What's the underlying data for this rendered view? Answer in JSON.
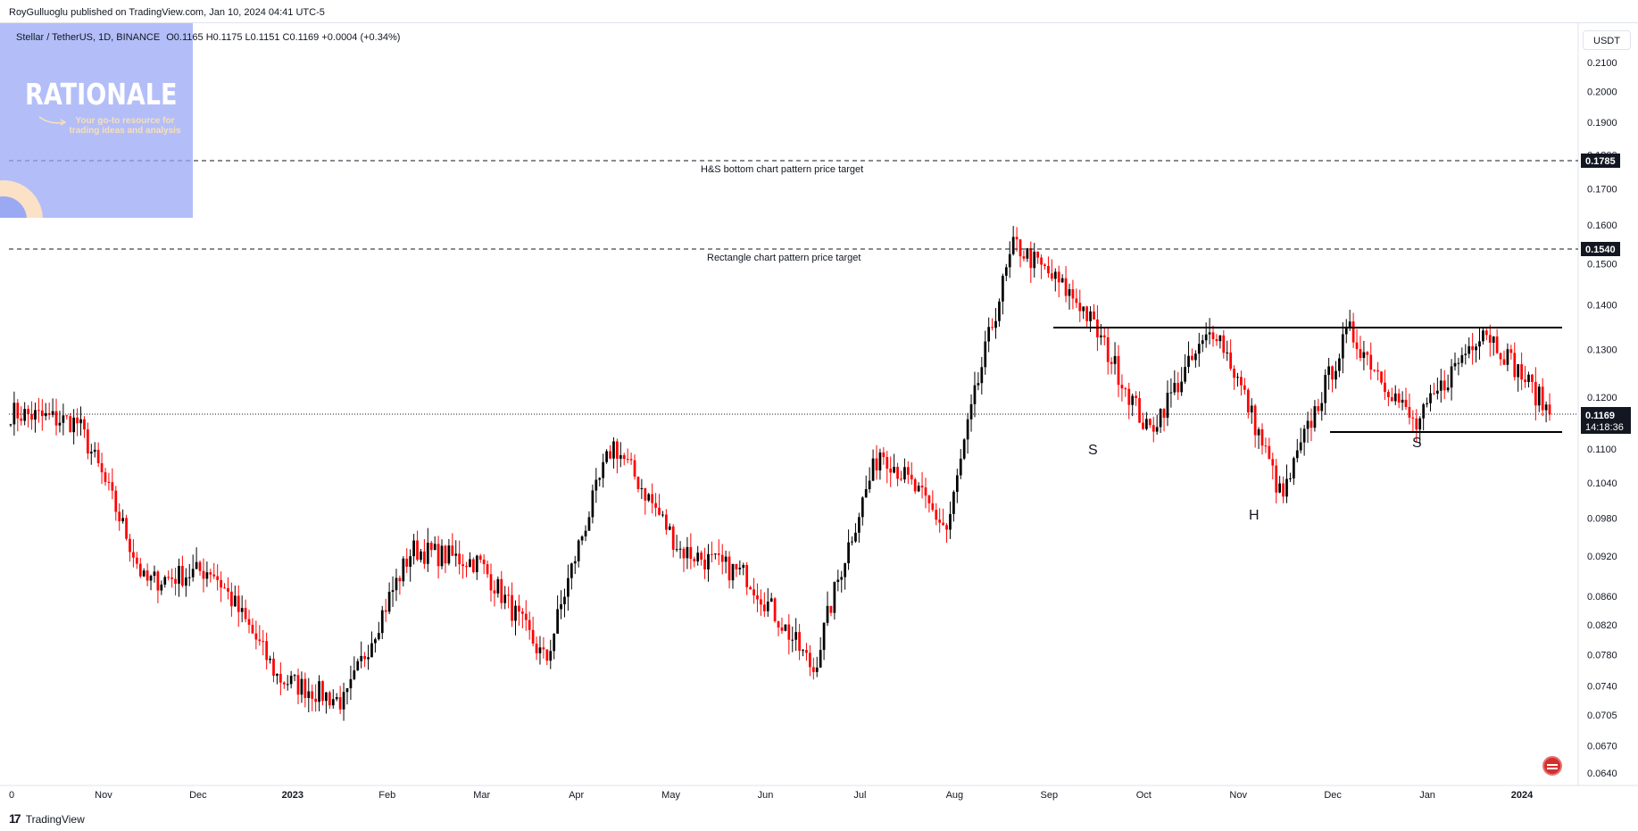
{
  "header": {
    "publisher": "RoyGulluoglu published on TradingView.com, Jan 10, 2024 04:41 UTC-5",
    "symbol": "Stellar / TetherUS, 1D, BINANCE",
    "ohlc": "O0.1165 H0.1175 L0.1151 C0.1169 +0.0004 (+0.34%)"
  },
  "brand": {
    "title": "RATIONALE",
    "tagline": "Your go-to resource for trading ideas and analysis",
    "colors": {
      "panel": "#96a5f5",
      "accent": "#fbe1c6"
    }
  },
  "currency": "USDT",
  "footer": {
    "logo": "17",
    "name": "TradingView"
  },
  "colors": {
    "up": "#000000",
    "down": "#ff0000",
    "axis": "#131722"
  },
  "chart_data": {
    "type": "candlestick",
    "y_ticks": [
      "0.2100",
      "0.2000",
      "0.1900",
      "0.1800",
      "0.1700",
      "0.1600",
      "0.1500",
      "0.1400",
      "0.1300",
      "0.1200",
      "0.1100",
      "0.1040",
      "0.0980",
      "0.0920",
      "0.0860",
      "0.0820",
      "0.0780",
      "0.0740",
      "0.0705",
      "0.0670",
      "0.0640"
    ],
    "x_ticks": [
      "0",
      "Nov",
      "Dec",
      "2023",
      "Feb",
      "Mar",
      "Apr",
      "May",
      "Jun",
      "Jul",
      "Aug",
      "Sep",
      "Oct",
      "Nov",
      "Dec",
      "Jan",
      "2024"
    ],
    "price_path": [
      [
        "Oct 2022",
        0.117
      ],
      [
        "Nov 2022",
        0.115
      ],
      [
        "Nov 2022",
        0.088
      ],
      [
        "Dec 2022",
        0.09
      ],
      [
        "Dec 2022",
        0.075
      ],
      [
        "Jan 2023",
        0.072
      ],
      [
        "Jan 2023",
        0.093
      ],
      [
        "Feb 2023",
        0.091
      ],
      [
        "Mar 2023",
        0.077
      ],
      [
        "Apr 2023",
        0.111
      ],
      [
        "May 2023",
        0.093
      ],
      [
        "Jun 2023",
        0.089
      ],
      [
        "Jun 2023",
        0.076
      ],
      [
        "Jul 2023",
        0.11
      ],
      [
        "Jul 2023",
        0.096
      ],
      [
        "Jul 2023",
        0.155
      ],
      [
        "Aug 2023",
        0.14
      ],
      [
        "Aug 2023",
        0.113
      ],
      [
        "Sep 2023",
        0.135
      ],
      [
        "Oct 2023",
        0.101
      ],
      [
        "Nov 2023",
        0.134
      ],
      [
        "Dec 2023",
        0.114
      ],
      [
        "Dec 2023",
        0.135
      ],
      [
        "Jan 2024",
        0.1169
      ]
    ],
    "annotations": {
      "hs_target": {
        "label": "H&S bottom chart pattern price target",
        "value": "0.1785"
      },
      "rect_target": {
        "label": "Rectangle chart pattern price target",
        "value": "0.1540"
      },
      "last_price": {
        "value": "0.1169",
        "countdown": "14:18:36"
      },
      "resistance": 0.135,
      "support": 0.113,
      "pattern_labels": [
        "S",
        "H",
        "S"
      ]
    }
  }
}
